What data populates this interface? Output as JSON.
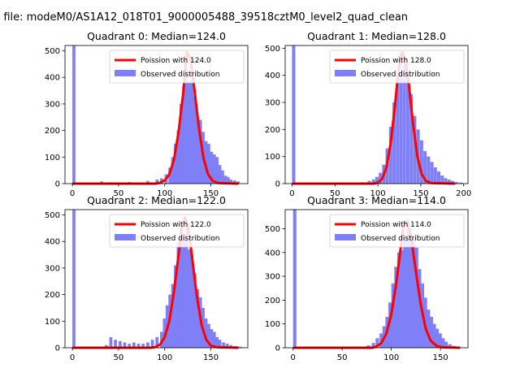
{
  "figure": {
    "suptitle": "n file: modeM0/AS1A12_018T01_9000005488_39518cztM0_level2_quad_clean"
  },
  "colors": {
    "hist": "#7f7ff7",
    "fit": "#ff0000",
    "frame": "#000000"
  },
  "chart_data": [
    {
      "type": "bar",
      "title": "Quadrant 0: Median=124.0",
      "xlim": [
        -8,
        190
      ],
      "ylim": [
        0,
        520
      ],
      "xticks": [
        0,
        50,
        100,
        150
      ],
      "yticks": [
        0,
        100,
        200,
        300,
        400,
        500
      ],
      "legend": {
        "placement": "top-right",
        "fit_label": "Poission with 124.0",
        "hist_label": "Observed distribution"
      },
      "bin_width": 3.3,
      "hist": [
        [
          0,
          520
        ],
        [
          30,
          8
        ],
        [
          40,
          5
        ],
        [
          50,
          4
        ],
        [
          60,
          6
        ],
        [
          70,
          4
        ],
        [
          80,
          10
        ],
        [
          90,
          15
        ],
        [
          95,
          20
        ],
        [
          100,
          35
        ],
        [
          104,
          60
        ],
        [
          107,
          100
        ],
        [
          110,
          150
        ],
        [
          113,
          200
        ],
        [
          116,
          300
        ],
        [
          119,
          370
        ],
        [
          122,
          430
        ],
        [
          125,
          380
        ],
        [
          128,
          390
        ],
        [
          131,
          330
        ],
        [
          134,
          250
        ],
        [
          137,
          240
        ],
        [
          140,
          195
        ],
        [
          143,
          160
        ],
        [
          146,
          150
        ],
        [
          149,
          120
        ],
        [
          152,
          110
        ],
        [
          155,
          100
        ],
        [
          158,
          70
        ],
        [
          161,
          50
        ],
        [
          164,
          30
        ],
        [
          167,
          25
        ],
        [
          170,
          15
        ],
        [
          174,
          12
        ],
        [
          178,
          8
        ]
      ],
      "fit": [
        [
          0,
          0
        ],
        [
          90,
          0
        ],
        [
          95,
          3
        ],
        [
          100,
          12
        ],
        [
          105,
          35
        ],
        [
          110,
          90
        ],
        [
          115,
          195
        ],
        [
          120,
          340
        ],
        [
          124,
          495
        ],
        [
          128,
          470
        ],
        [
          132,
          360
        ],
        [
          137,
          210
        ],
        [
          142,
          95
        ],
        [
          147,
          35
        ],
        [
          152,
          10
        ],
        [
          158,
          2
        ],
        [
          180,
          0
        ]
      ]
    },
    {
      "type": "bar",
      "title": "Quadrant 1: Median=128.0",
      "xlim": [
        -8,
        205
      ],
      "ylim": [
        0,
        510
      ],
      "xticks": [
        0,
        50,
        100,
        150,
        200
      ],
      "yticks": [
        0,
        100,
        200,
        300,
        400,
        500
      ],
      "legend": {
        "placement": "top-right",
        "fit_label": "Poission with 128.0",
        "hist_label": "Observed distribution"
      },
      "bin_width": 3.8,
      "hist": [
        [
          0,
          510
        ],
        [
          70,
          3
        ],
        [
          80,
          5
        ],
        [
          88,
          10
        ],
        [
          93,
          15
        ],
        [
          97,
          25
        ],
        [
          101,
          40
        ],
        [
          105,
          70
        ],
        [
          109,
          130
        ],
        [
          113,
          210
        ],
        [
          117,
          300
        ],
        [
          121,
          390
        ],
        [
          125,
          420
        ],
        [
          129,
          440
        ],
        [
          133,
          400
        ],
        [
          137,
          330
        ],
        [
          141,
          250
        ],
        [
          145,
          200
        ],
        [
          149,
          160
        ],
        [
          153,
          120
        ],
        [
          157,
          100
        ],
        [
          161,
          80
        ],
        [
          165,
          60
        ],
        [
          169,
          45
        ],
        [
          173,
          30
        ],
        [
          177,
          20
        ],
        [
          181,
          15
        ],
        [
          185,
          10
        ],
        [
          190,
          6
        ],
        [
          195,
          4
        ]
      ],
      "fit": [
        [
          0,
          0
        ],
        [
          95,
          0
        ],
        [
          100,
          4
        ],
        [
          105,
          18
        ],
        [
          110,
          60
        ],
        [
          115,
          150
        ],
        [
          120,
          290
        ],
        [
          124,
          420
        ],
        [
          128,
          485
        ],
        [
          132,
          460
        ],
        [
          136,
          370
        ],
        [
          141,
          220
        ],
        [
          146,
          100
        ],
        [
          151,
          35
        ],
        [
          156,
          10
        ],
        [
          162,
          2
        ],
        [
          190,
          0
        ]
      ]
    },
    {
      "type": "bar",
      "title": "Quadrant 2: Median=122.0",
      "xlim": [
        -8,
        190
      ],
      "ylim": [
        0,
        520
      ],
      "xticks": [
        0,
        50,
        100,
        150
      ],
      "yticks": [
        0,
        100,
        200,
        300,
        400,
        500
      ],
      "legend": {
        "placement": "top-right",
        "fit_label": "Poission with 122.0",
        "hist_label": "Observed distribution"
      },
      "bin_width": 3.3,
      "hist": [
        [
          0,
          520
        ],
        [
          35,
          10
        ],
        [
          40,
          40
        ],
        [
          45,
          30
        ],
        [
          50,
          25
        ],
        [
          55,
          20
        ],
        [
          60,
          15
        ],
        [
          65,
          20
        ],
        [
          70,
          15
        ],
        [
          75,
          15
        ],
        [
          80,
          20
        ],
        [
          85,
          30
        ],
        [
          90,
          40
        ],
        [
          95,
          60
        ],
        [
          98,
          110
        ],
        [
          101,
          160
        ],
        [
          104,
          200
        ],
        [
          107,
          240
        ],
        [
          110,
          310
        ],
        [
          113,
          400
        ],
        [
          116,
          450
        ],
        [
          119,
          430
        ],
        [
          122,
          460
        ],
        [
          125,
          370
        ],
        [
          128,
          350
        ],
        [
          131,
          280
        ],
        [
          134,
          220
        ],
        [
          137,
          190
        ],
        [
          140,
          150
        ],
        [
          143,
          110
        ],
        [
          146,
          90
        ],
        [
          149,
          70
        ],
        [
          152,
          60
        ],
        [
          155,
          40
        ],
        [
          158,
          30
        ],
        [
          162,
          20
        ],
        [
          166,
          15
        ],
        [
          170,
          10
        ],
        [
          175,
          6
        ],
        [
          180,
          4
        ]
      ],
      "fit": [
        [
          0,
          0
        ],
        [
          85,
          0
        ],
        [
          90,
          3
        ],
        [
          95,
          12
        ],
        [
          100,
          40
        ],
        [
          105,
          100
        ],
        [
          110,
          210
        ],
        [
          115,
          350
        ],
        [
          119,
          460
        ],
        [
          122,
          490
        ],
        [
          126,
          440
        ],
        [
          130,
          330
        ],
        [
          135,
          190
        ],
        [
          140,
          85
        ],
        [
          145,
          30
        ],
        [
          150,
          8
        ],
        [
          156,
          2
        ],
        [
          180,
          0
        ]
      ]
    },
    {
      "type": "bar",
      "title": "Quadrant 3: Median=114.0",
      "xlim": [
        -8,
        178
      ],
      "ylim": [
        0,
        580
      ],
      "xticks": [
        0,
        50,
        100,
        150
      ],
      "yticks": [
        0,
        100,
        200,
        300,
        400,
        500
      ],
      "legend": {
        "placement": "top-right",
        "fit_label": "Poission with 114.0",
        "hist_label": "Observed distribution"
      },
      "bin_width": 3.4,
      "hist": [
        [
          0,
          580
        ],
        [
          70,
          5
        ],
        [
          75,
          10
        ],
        [
          80,
          20
        ],
        [
          84,
          40
        ],
        [
          88,
          60
        ],
        [
          91,
          90
        ],
        [
          94,
          130
        ],
        [
          97,
          190
        ],
        [
          100,
          270
        ],
        [
          103,
          340
        ],
        [
          106,
          400
        ],
        [
          109,
          410
        ],
        [
          112,
          460
        ],
        [
          115,
          540
        ],
        [
          118,
          500
        ],
        [
          121,
          460
        ],
        [
          124,
          420
        ],
        [
          127,
          330
        ],
        [
          130,
          270
        ],
        [
          133,
          210
        ],
        [
          136,
          160
        ],
        [
          139,
          130
        ],
        [
          142,
          100
        ],
        [
          145,
          80
        ],
        [
          148,
          60
        ],
        [
          151,
          40
        ],
        [
          154,
          25
        ],
        [
          158,
          15
        ],
        [
          162,
          8
        ]
      ],
      "fit": [
        [
          0,
          0
        ],
        [
          80,
          0
        ],
        [
          85,
          5
        ],
        [
          90,
          20
        ],
        [
          95,
          60
        ],
        [
          100,
          140
        ],
        [
          105,
          270
        ],
        [
          109,
          400
        ],
        [
          113,
          530
        ],
        [
          117,
          520
        ],
        [
          121,
          440
        ],
        [
          125,
          320
        ],
        [
          130,
          180
        ],
        [
          135,
          80
        ],
        [
          140,
          30
        ],
        [
          146,
          8
        ],
        [
          152,
          2
        ],
        [
          170,
          0
        ]
      ]
    }
  ]
}
